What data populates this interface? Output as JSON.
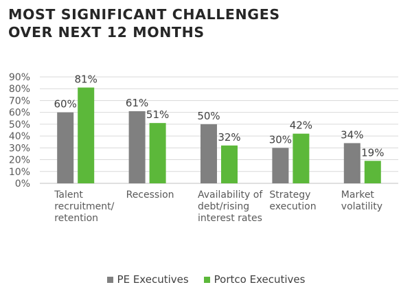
{
  "chart_data": {
    "type": "bar",
    "title": [
      "MOST SIGNIFICANT CHALLENGES",
      "OVER NEXT 12 MONTHS"
    ],
    "categories": [
      [
        "Talent",
        "recruitment/",
        "retention"
      ],
      [
        "Recession"
      ],
      [
        "Availability of",
        "debt/rising",
        "interest rates"
      ],
      [
        "Strategy",
        "execution"
      ],
      [
        "Market",
        "volatility"
      ]
    ],
    "series": [
      {
        "name": "PE Executives",
        "color": "#808080",
        "values": [
          60,
          61,
          50,
          30,
          34
        ],
        "labels": [
          "60%",
          "61%",
          "50%",
          "30%",
          "34%"
        ]
      },
      {
        "name": "Portco Executives",
        "color": "#5cb83a",
        "values": [
          81,
          51,
          32,
          42,
          19
        ],
        "labels": [
          "81%",
          "51%",
          "32%",
          "42%",
          "19%"
        ]
      }
    ],
    "ylim": [
      0,
      90
    ],
    "yticks": [
      "0%",
      "10%",
      "20%",
      "30%",
      "40%",
      "50%",
      "60%",
      "70%",
      "80%",
      "90%"
    ],
    "ytick_values": [
      0,
      10,
      20,
      30,
      40,
      50,
      60,
      70,
      80,
      90
    ],
    "gridlines": true,
    "legend_position": "bottom"
  }
}
